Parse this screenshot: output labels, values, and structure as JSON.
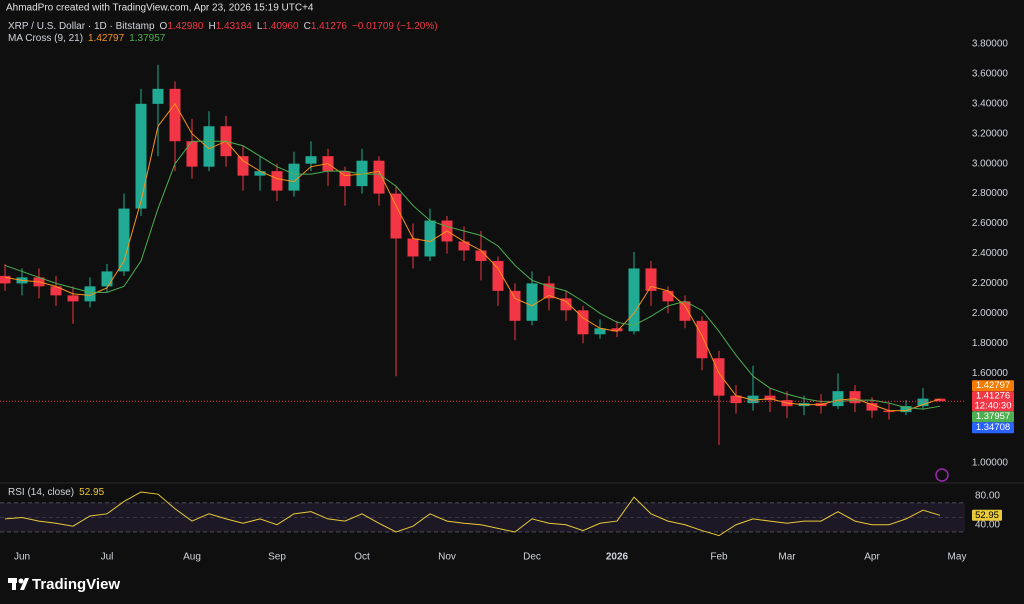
{
  "chart_data": {
    "type": "candlestick",
    "credit": "AhmadPro created with TradingView.com, Apr 23, 2026 15:19 UTC+4",
    "title": "XRP / U.S. Dollar · 1D · Bitstamp",
    "ohlc_legend": [
      {
        "key": "O",
        "text": "1.42980"
      },
      {
        "key": "H",
        "text": "1.43184"
      },
      {
        "key": "L",
        "text": "1.40960"
      },
      {
        "key": "C",
        "text": "1.41276"
      }
    ],
    "change_text": "−0.01709 (−1.20%)",
    "categories": [
      null,
      "Jun",
      null,
      null,
      null,
      null,
      "Jul",
      null,
      null,
      null,
      null,
      "Aug",
      null,
      null,
      null,
      null,
      "Sep",
      null,
      null,
      null,
      null,
      "Oct",
      null,
      null,
      null,
      null,
      "Nov",
      null,
      null,
      null,
      null,
      "Dec",
      null,
      null,
      null,
      null,
      "2026",
      null,
      null,
      null,
      null,
      null,
      "Feb",
      null,
      null,
      null,
      "Mar",
      null,
      null,
      null,
      null,
      "Apr",
      null,
      null,
      null,
      null,
      "May"
    ],
    "open": [
      2.25,
      2.2,
      2.24,
      2.18,
      2.12,
      2.08,
      2.18,
      2.28,
      2.7,
      3.4,
      3.5,
      3.15,
      2.98,
      3.25,
      3.05,
      2.92,
      2.95,
      2.82,
      3.0,
      3.05,
      2.95,
      2.85,
      3.02,
      2.8,
      2.5,
      2.38,
      2.62,
      2.48,
      2.42,
      2.35,
      2.15,
      1.95,
      2.2,
      2.1,
      2.02,
      1.86,
      1.9,
      1.88,
      2.3,
      2.15,
      2.08,
      1.95,
      1.7,
      1.45,
      1.4,
      1.45,
      1.42,
      1.38,
      1.4,
      1.38,
      1.48,
      1.4,
      1.35,
      1.34,
      1.38,
      1.4298,
      null
    ],
    "high": [
      2.33,
      2.3,
      2.3,
      2.25,
      2.18,
      2.24,
      2.33,
      2.8,
      3.5,
      3.66,
      3.55,
      3.3,
      3.35,
      3.32,
      3.12,
      3.05,
      3.0,
      3.08,
      3.15,
      3.1,
      2.98,
      3.1,
      3.05,
      2.85,
      2.6,
      2.7,
      2.65,
      2.58,
      2.55,
      2.38,
      2.2,
      2.28,
      2.25,
      2.15,
      2.05,
      1.96,
      1.95,
      2.41,
      2.35,
      2.18,
      2.12,
      1.98,
      1.75,
      1.52,
      1.65,
      1.5,
      1.48,
      1.45,
      1.46,
      1.6,
      1.52,
      1.44,
      1.4,
      1.42,
      1.5,
      1.43184,
      null
    ],
    "low": [
      2.15,
      2.12,
      2.1,
      2.05,
      1.93,
      2.04,
      2.14,
      2.25,
      2.65,
      3.05,
      2.95,
      2.9,
      2.95,
      2.98,
      2.82,
      2.82,
      2.75,
      2.78,
      2.95,
      2.85,
      2.72,
      2.8,
      2.72,
      1.58,
      2.3,
      2.35,
      2.4,
      2.35,
      2.22,
      2.05,
      1.82,
      1.92,
      2.02,
      1.95,
      1.8,
      1.83,
      1.84,
      1.86,
      2.05,
      2.0,
      1.9,
      1.62,
      1.12,
      1.33,
      1.35,
      1.34,
      1.3,
      1.32,
      1.33,
      1.36,
      1.34,
      1.3,
      1.29,
      1.32,
      1.36,
      1.4096,
      null
    ],
    "close": [
      2.2,
      2.24,
      2.18,
      2.12,
      2.08,
      2.18,
      2.28,
      2.7,
      3.4,
      3.5,
      3.15,
      2.98,
      3.25,
      3.05,
      2.92,
      2.95,
      2.82,
      3.0,
      3.05,
      2.95,
      2.85,
      3.02,
      2.8,
      2.5,
      2.38,
      2.62,
      2.48,
      2.42,
      2.35,
      2.15,
      1.95,
      2.2,
      2.1,
      2.02,
      1.86,
      1.9,
      1.88,
      2.3,
      2.15,
      2.08,
      1.95,
      1.7,
      1.45,
      1.4,
      1.45,
      1.42,
      1.38,
      1.4,
      1.38,
      1.48,
      1.4,
      1.35,
      1.34,
      1.38,
      1.43,
      1.41276,
      null
    ],
    "up_color": "#22ab94",
    "down_color": "#f23645",
    "ylim": [
      0.873,
      3.96
    ],
    "yticks": [
      {
        "value": 1.0,
        "label": "1.00000"
      },
      {
        "value": 1.6,
        "label": "1.60000"
      },
      {
        "value": 1.8,
        "label": "1.80000"
      },
      {
        "value": 2.0,
        "label": "2.00000"
      },
      {
        "value": 2.2,
        "label": "2.20000"
      },
      {
        "value": 2.4,
        "label": "2.40000"
      },
      {
        "value": 2.6,
        "label": "2.60000"
      },
      {
        "value": 2.8,
        "label": "2.80000"
      },
      {
        "value": 3.0,
        "label": "3.00000"
      },
      {
        "value": 3.2,
        "label": "3.20000"
      },
      {
        "value": 3.4,
        "label": "3.40000"
      },
      {
        "value": 3.6,
        "label": "3.60000"
      },
      {
        "value": 3.8,
        "label": "3.80000"
      }
    ],
    "last_price_line": true,
    "indicator": {
      "name": "MA Cross (9, 21)",
      "lines": [
        {
          "color": "#f7931a",
          "value_label": "1.42797",
          "values": [
            2.24,
            2.22,
            2.21,
            2.18,
            2.13,
            2.12,
            2.17,
            2.35,
            2.75,
            3.25,
            3.4,
            3.2,
            3.1,
            3.15,
            3.02,
            2.95,
            2.9,
            2.88,
            2.98,
            3.0,
            2.92,
            2.93,
            2.95,
            2.72,
            2.5,
            2.48,
            2.55,
            2.48,
            2.42,
            2.3,
            2.1,
            2.05,
            2.12,
            2.08,
            1.97,
            1.9,
            1.88,
            2.0,
            2.18,
            2.15,
            2.05,
            1.85,
            1.6,
            1.45,
            1.42,
            1.43,
            1.4,
            1.39,
            1.39,
            1.42,
            1.43,
            1.39,
            1.35,
            1.35,
            1.39,
            1.42797,
            null
          ]
        },
        {
          "color": "#4caf50",
          "value_label": "1.37957",
          "values": [
            2.32,
            2.28,
            2.24,
            2.2,
            2.17,
            2.14,
            2.14,
            2.18,
            2.35,
            2.7,
            3.0,
            3.15,
            3.15,
            3.15,
            3.12,
            3.05,
            2.98,
            2.93,
            2.93,
            2.95,
            2.95,
            2.93,
            2.93,
            2.85,
            2.72,
            2.62,
            2.58,
            2.55,
            2.52,
            2.45,
            2.32,
            2.22,
            2.18,
            2.15,
            2.08,
            2.0,
            1.94,
            1.92,
            1.98,
            2.05,
            2.08,
            2.02,
            1.88,
            1.72,
            1.58,
            1.5,
            1.46,
            1.43,
            1.41,
            1.41,
            1.42,
            1.42,
            1.4,
            1.37,
            1.36,
            1.37957,
            null
          ]
        }
      ]
    },
    "price_tags": [
      {
        "value": 1.42797,
        "label": "1.42797",
        "color": "#f57c00"
      },
      {
        "value": 1.41276,
        "label": "1.41276",
        "sublabel": "12:40:30",
        "color": "#f23645"
      },
      {
        "value": 1.37957,
        "label": "1.37957",
        "color": "#4caf50"
      },
      {
        "value": 1.34708,
        "label": "1.34708",
        "color": "#2962ff"
      }
    ],
    "rsi": {
      "name": "RSI (14, close)",
      "value_label": "52.95",
      "color": "#e8c93a",
      "values": [
        48,
        50,
        45,
        42,
        38,
        52,
        55,
        72,
        85,
        82,
        62,
        45,
        55,
        48,
        42,
        48,
        40,
        55,
        58,
        48,
        45,
        55,
        42,
        30,
        38,
        55,
        45,
        42,
        40,
        35,
        30,
        48,
        42,
        40,
        32,
        42,
        45,
        78,
        55,
        45,
        40,
        32,
        25,
        40,
        48,
        45,
        42,
        45,
        45,
        58,
        45,
        40,
        40,
        48,
        60,
        52.95,
        null
      ],
      "ylim": [
        19,
        96
      ],
      "yticks": [
        {
          "value": 80,
          "label": "80.00"
        },
        {
          "value": 40,
          "label": "40.00"
        }
      ],
      "levels": [
        70,
        50,
        30
      ]
    },
    "brand": "TradingView"
  }
}
